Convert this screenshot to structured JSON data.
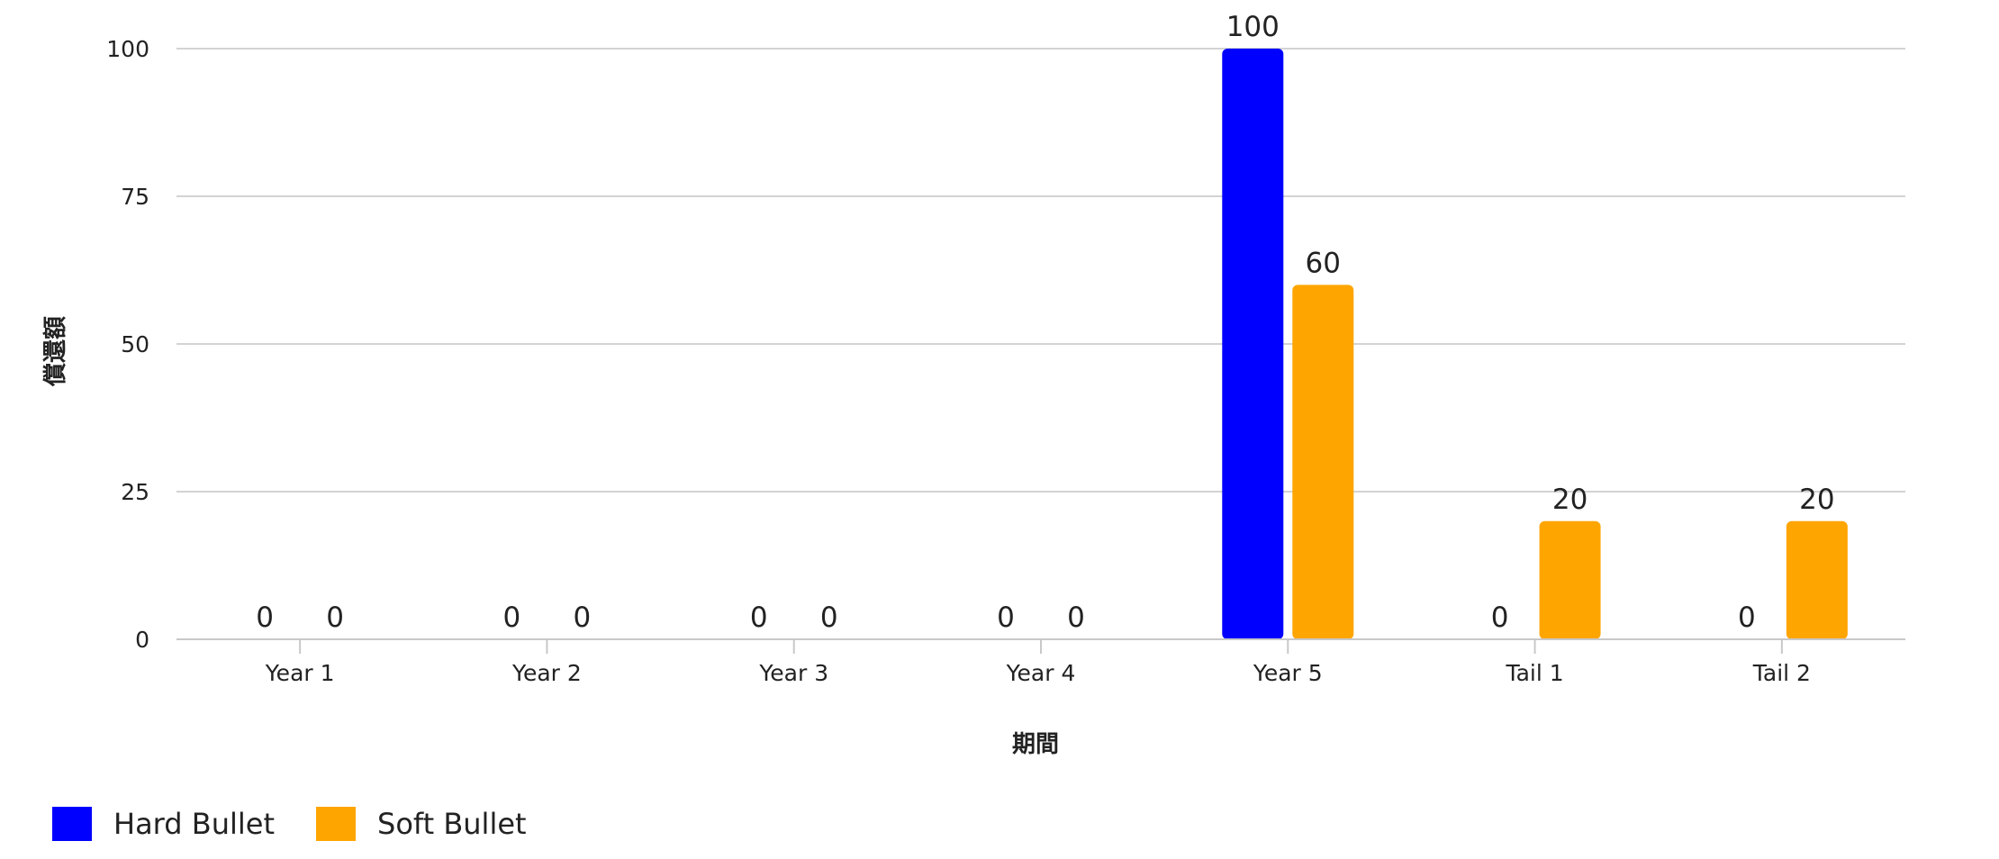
{
  "chart_data": {
    "type": "bar",
    "categories": [
      "Year 1",
      "Year 2",
      "Year 3",
      "Year 4",
      "Year 5",
      "Tail 1",
      "Tail 2"
    ],
    "series": [
      {
        "name": "Hard Bullet",
        "color": "#0000ff",
        "values": [
          0,
          0,
          0,
          0,
          100,
          0,
          0
        ]
      },
      {
        "name": "Soft Bullet",
        "color": "#ffa500",
        "values": [
          0,
          0,
          0,
          0,
          60,
          20,
          20
        ]
      }
    ],
    "xlabel": "期間",
    "ylabel": "償還額",
    "ylim": [
      0,
      100
    ],
    "yticks": [
      0,
      25,
      50,
      75,
      100
    ],
    "grid": true,
    "legend_position": "bottom-left",
    "data_labels": true
  }
}
